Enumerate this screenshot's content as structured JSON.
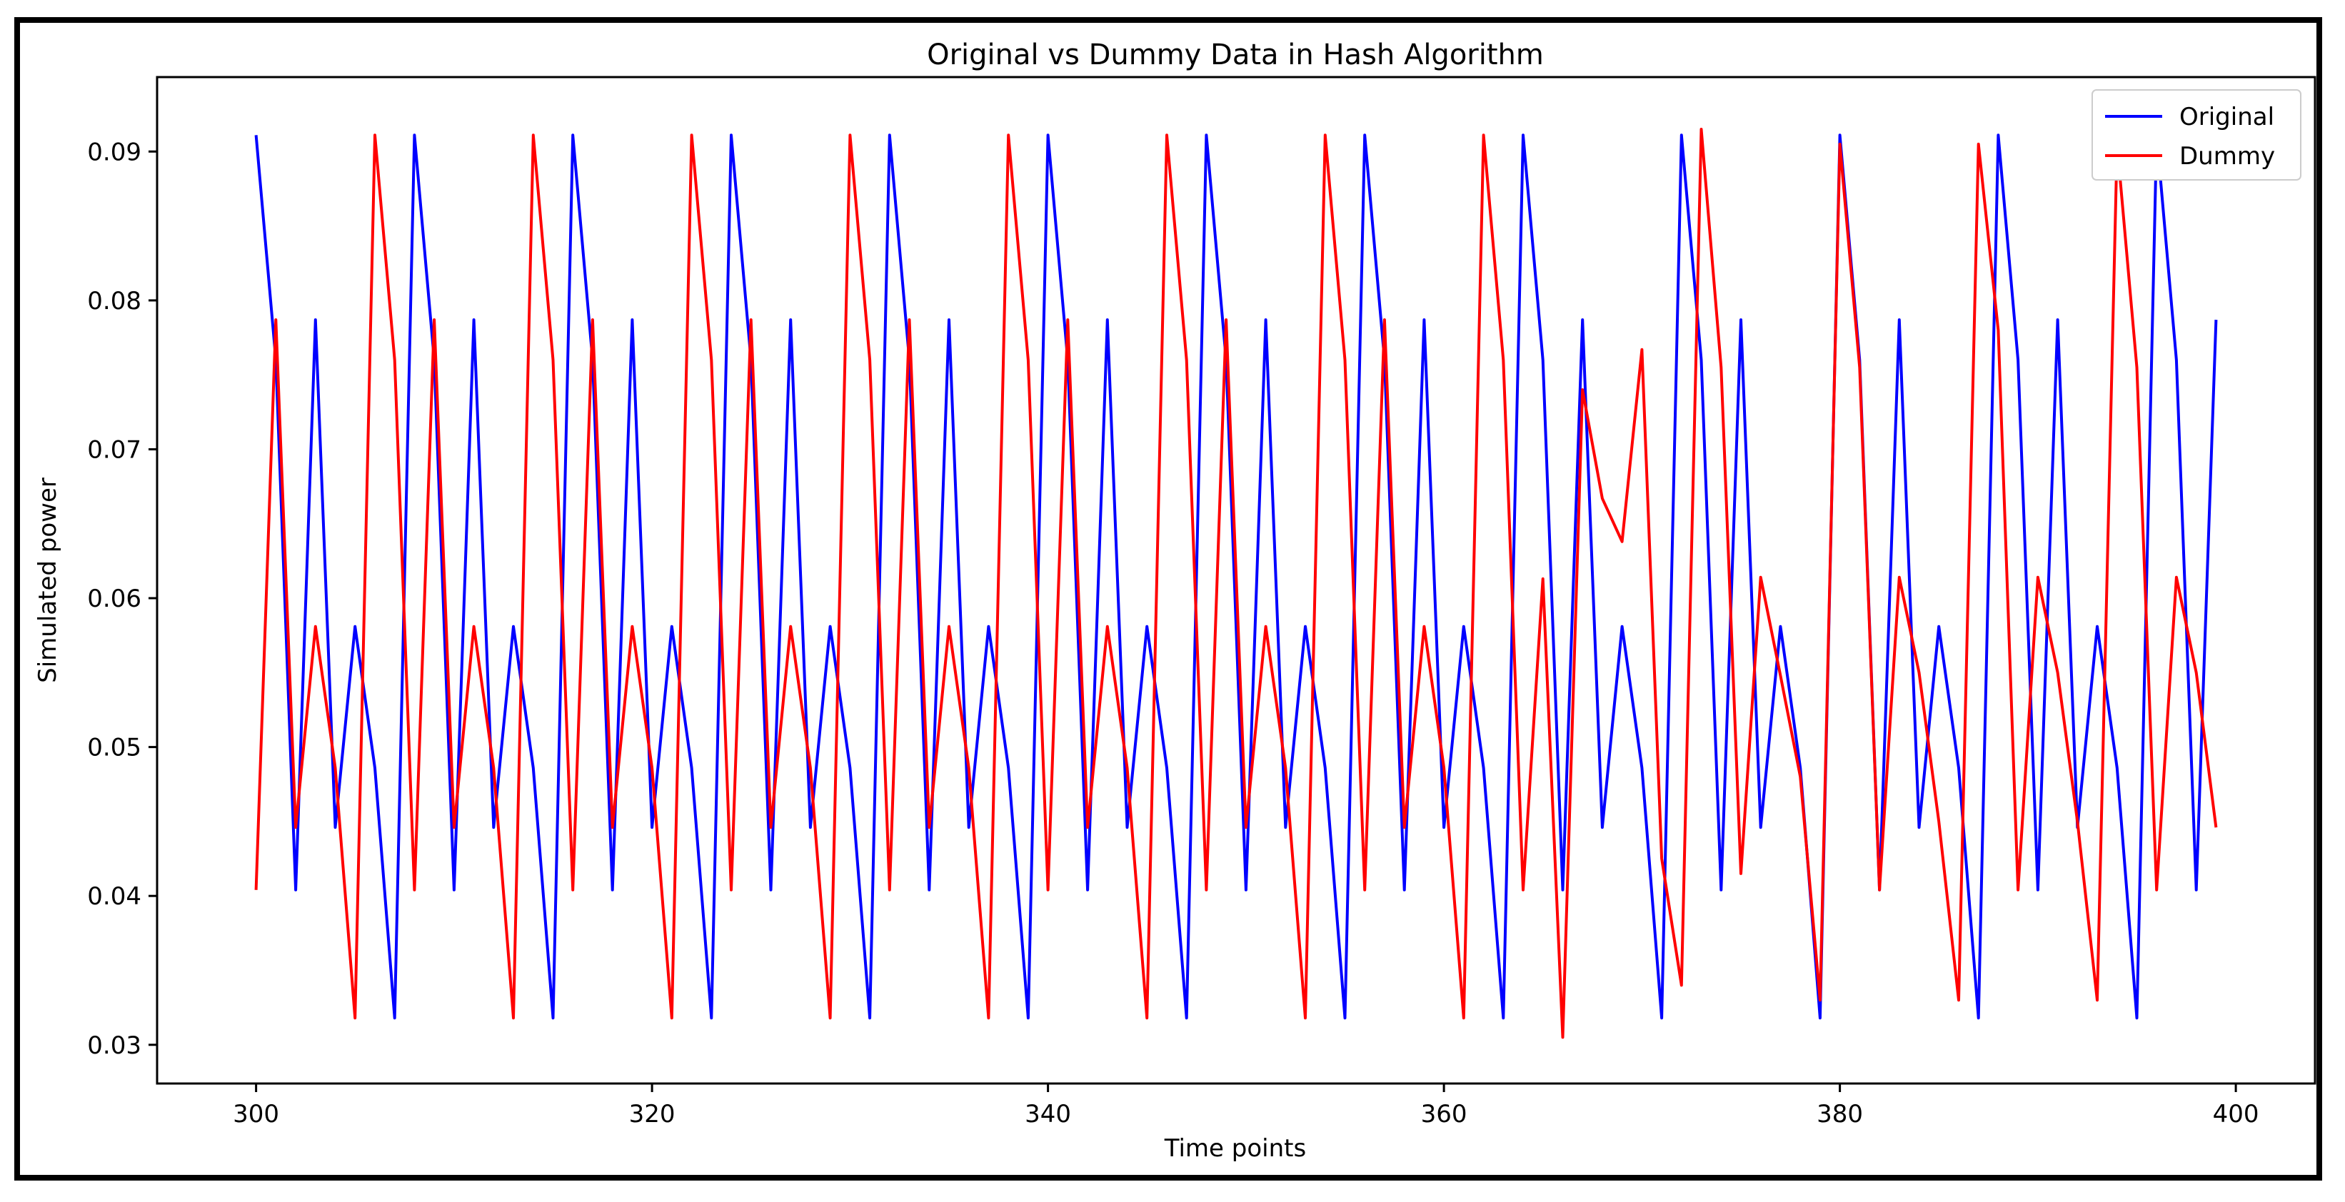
{
  "chart_data": {
    "type": "line",
    "title": "Original vs Dummy Data in Hash Algorithm",
    "xlabel": "Time points",
    "ylabel": "Simulated power",
    "xlim": [
      295,
      404
    ],
    "ylim": [
      0.0274,
      0.095
    ],
    "xticks": [
      300,
      320,
      340,
      360,
      380,
      400
    ],
    "yticks": [
      0.03,
      0.04,
      0.05,
      0.06,
      0.07,
      0.08,
      0.09
    ],
    "grid": false,
    "legend_position": "upper right",
    "x": [
      300,
      301,
      302,
      303,
      304,
      305,
      306,
      307,
      308,
      309,
      310,
      311,
      312,
      313,
      314,
      315,
      316,
      317,
      318,
      319,
      320,
      321,
      322,
      323,
      324,
      325,
      326,
      327,
      328,
      329,
      330,
      331,
      332,
      333,
      334,
      335,
      336,
      337,
      338,
      339,
      340,
      341,
      342,
      343,
      344,
      345,
      346,
      347,
      348,
      349,
      350,
      351,
      352,
      353,
      354,
      355,
      356,
      357,
      358,
      359,
      360,
      361,
      362,
      363,
      364,
      365,
      366,
      367,
      368,
      369,
      370,
      371,
      372,
      373,
      374,
      375,
      376,
      377,
      378,
      379,
      380,
      381,
      382,
      383,
      384,
      385,
      386,
      387,
      388,
      389,
      390,
      391,
      392,
      393,
      394,
      395,
      396,
      397,
      398,
      399
    ],
    "series": [
      {
        "name": "Original",
        "color": "#0000ff",
        "values": [
          0.0911,
          0.076,
          0.0404,
          0.0787,
          0.0446,
          0.0581,
          0.0486,
          0.0318,
          0.0911,
          0.076,
          0.0404,
          0.0787,
          0.0446,
          0.0581,
          0.0486,
          0.0318,
          0.0911,
          0.076,
          0.0404,
          0.0787,
          0.0446,
          0.0581,
          0.0486,
          0.0318,
          0.0911,
          0.076,
          0.0404,
          0.0787,
          0.0446,
          0.0581,
          0.0486,
          0.0318,
          0.0911,
          0.076,
          0.0404,
          0.0787,
          0.0446,
          0.0581,
          0.0486,
          0.0318,
          0.0911,
          0.076,
          0.0404,
          0.0787,
          0.0446,
          0.0581,
          0.0486,
          0.0318,
          0.0911,
          0.076,
          0.0404,
          0.0787,
          0.0446,
          0.0581,
          0.0486,
          0.0318,
          0.0911,
          0.076,
          0.0404,
          0.0787,
          0.0446,
          0.0581,
          0.0486,
          0.0318,
          0.0911,
          0.076,
          0.0404,
          0.0787,
          0.0446,
          0.0581,
          0.0486,
          0.0318,
          0.0911,
          0.076,
          0.0404,
          0.0787,
          0.0446,
          0.0581,
          0.0486,
          0.0318,
          0.0911,
          0.076,
          0.0404,
          0.0787,
          0.0446,
          0.0581,
          0.0486,
          0.0318,
          0.0911,
          0.076,
          0.0404,
          0.0787,
          0.0446,
          0.0581,
          0.0486,
          0.0318,
          0.0911,
          0.076,
          0.0404,
          0.0787
        ]
      },
      {
        "name": "Dummy",
        "color": "#ff0000",
        "values": [
          0.0404,
          0.0787,
          0.0446,
          0.0581,
          0.0486,
          0.0318,
          0.0911,
          0.076,
          0.0404,
          0.0787,
          0.0446,
          0.0581,
          0.0486,
          0.0318,
          0.0911,
          0.076,
          0.0404,
          0.0787,
          0.0446,
          0.0581,
          0.0486,
          0.0318,
          0.0911,
          0.076,
          0.0404,
          0.0787,
          0.0446,
          0.0581,
          0.0486,
          0.0318,
          0.0911,
          0.076,
          0.0404,
          0.0787,
          0.0446,
          0.0581,
          0.0486,
          0.0318,
          0.0911,
          0.076,
          0.0404,
          0.0787,
          0.0446,
          0.0581,
          0.0486,
          0.0318,
          0.0911,
          0.076,
          0.0404,
          0.0787,
          0.0446,
          0.0581,
          0.0486,
          0.0318,
          0.0911,
          0.076,
          0.0404,
          0.0787,
          0.0446,
          0.0581,
          0.0486,
          0.0318,
          0.0911,
          0.076,
          0.0404,
          0.0613,
          0.0305,
          0.074,
          0.0667,
          0.0638,
          0.0767,
          0.0425,
          0.034,
          0.0915,
          0.0755,
          0.0415,
          0.0614,
          0.0548,
          0.048,
          0.033,
          0.0905,
          0.0755,
          0.0404,
          0.0614,
          0.055,
          0.045,
          0.033,
          0.0905,
          0.078,
          0.0404,
          0.0614,
          0.055,
          0.045,
          0.033,
          0.0905,
          0.0755,
          0.0404,
          0.0614,
          0.055,
          0.0446
        ]
      }
    ]
  }
}
